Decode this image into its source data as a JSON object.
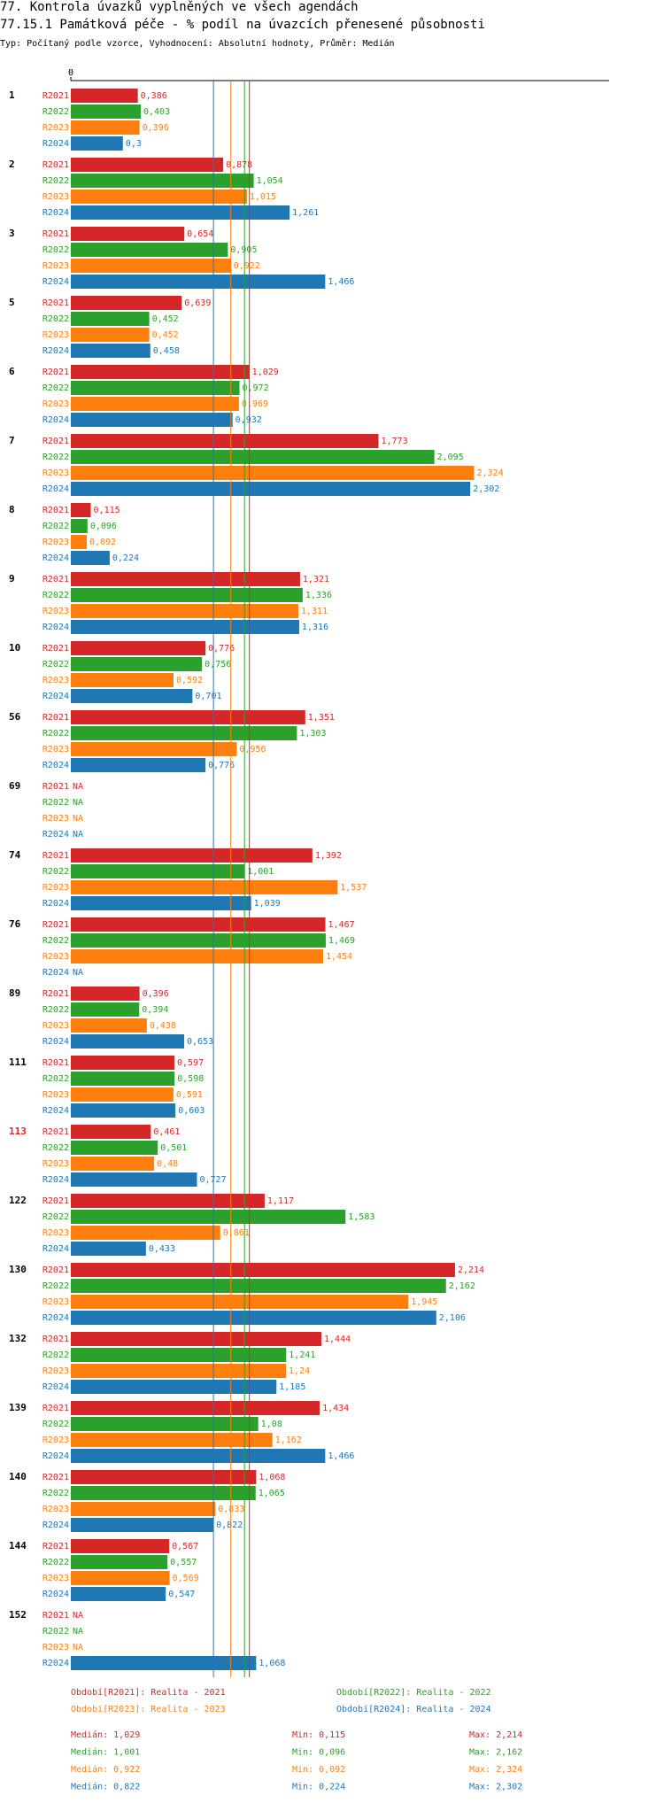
{
  "title_line1": "77. Kontrola úvazků vyplněných ve všech agendách",
  "title_line2": "77.15.1 Památková péče - % podíl na úvazcích přenesené působnosti",
  "subtitle": "Typ: Počítaný podle vzorce, Vyhodnocení: Absolutní hodnoty, Průměr: Medián",
  "chart_data": {
    "type": "bar",
    "orientation": "horizontal",
    "axis_zero_label": "0",
    "xlim": [
      0,
      2.6
    ],
    "na_label": "NA",
    "series": [
      {
        "key": "R2021",
        "label": "R2021",
        "color": "#d62728"
      },
      {
        "key": "R2022",
        "label": "R2022",
        "color": "#2ca02c"
      },
      {
        "key": "R2023",
        "label": "R2023",
        "color": "#ff7f0e"
      },
      {
        "key": "R2024",
        "label": "R2024",
        "color": "#1f77b4"
      }
    ],
    "groups": [
      {
        "label": "1",
        "highlight": false,
        "values": [
          0.386,
          0.403,
          0.396,
          0.3
        ],
        "texts": [
          "0,386",
          "0,403",
          "0,396",
          "0,3"
        ]
      },
      {
        "label": "2",
        "highlight": false,
        "values": [
          0.878,
          1.054,
          1.015,
          1.261
        ],
        "texts": [
          "0,878",
          "1,054",
          "1,015",
          "1,261"
        ]
      },
      {
        "label": "3",
        "highlight": false,
        "values": [
          0.654,
          0.905,
          0.922,
          1.466
        ],
        "texts": [
          "0,654",
          "0,905",
          "0,922",
          "1,466"
        ]
      },
      {
        "label": "5",
        "highlight": false,
        "values": [
          0.639,
          0.452,
          0.452,
          0.458
        ],
        "texts": [
          "0,639",
          "0,452",
          "0,452",
          "0,458"
        ]
      },
      {
        "label": "6",
        "highlight": false,
        "values": [
          1.029,
          0.972,
          0.969,
          0.932
        ],
        "texts": [
          "1,029",
          "0,972",
          "0,969",
          "0,932"
        ]
      },
      {
        "label": "7",
        "highlight": false,
        "values": [
          1.773,
          2.095,
          2.324,
          2.302
        ],
        "texts": [
          "1,773",
          "2,095",
          "2,324",
          "2,302"
        ]
      },
      {
        "label": "8",
        "highlight": false,
        "values": [
          0.115,
          0.096,
          0.092,
          0.224
        ],
        "texts": [
          "0,115",
          "0,096",
          "0,092",
          "0,224"
        ]
      },
      {
        "label": "9",
        "highlight": false,
        "values": [
          1.321,
          1.336,
          1.311,
          1.316
        ],
        "texts": [
          "1,321",
          "1,336",
          "1,311",
          "1,316"
        ]
      },
      {
        "label": "10",
        "highlight": false,
        "values": [
          0.776,
          0.756,
          0.592,
          0.701
        ],
        "texts": [
          "0,776",
          "0,756",
          "0,592",
          "0,701"
        ]
      },
      {
        "label": "56",
        "highlight": false,
        "values": [
          1.351,
          1.303,
          0.956,
          0.776
        ],
        "texts": [
          "1,351",
          "1,303",
          "0,956",
          "0,776"
        ]
      },
      {
        "label": "69",
        "highlight": false,
        "values": [
          null,
          null,
          null,
          null
        ],
        "texts": [
          "NA",
          "NA",
          "NA",
          "NA"
        ]
      },
      {
        "label": "74",
        "highlight": false,
        "values": [
          1.392,
          1.001,
          1.537,
          1.039
        ],
        "texts": [
          "1,392",
          "1,001",
          "1,537",
          "1,039"
        ]
      },
      {
        "label": "76",
        "highlight": false,
        "values": [
          1.467,
          1.469,
          1.454,
          null
        ],
        "texts": [
          "1,467",
          "1,469",
          "1,454",
          "NA"
        ]
      },
      {
        "label": "89",
        "highlight": false,
        "values": [
          0.396,
          0.394,
          0.438,
          0.653
        ],
        "texts": [
          "0,396",
          "0,394",
          "0,438",
          "0,653"
        ]
      },
      {
        "label": "111",
        "highlight": false,
        "values": [
          0.597,
          0.598,
          0.591,
          0.603
        ],
        "texts": [
          "0,597",
          "0,598",
          "0,591",
          "0,603"
        ]
      },
      {
        "label": "113",
        "highlight": true,
        "values": [
          0.461,
          0.501,
          0.48,
          0.727
        ],
        "texts": [
          "0,461",
          "0,501",
          "0,48",
          "0,727"
        ]
      },
      {
        "label": "122",
        "highlight": false,
        "values": [
          1.117,
          1.583,
          0.861,
          0.433
        ],
        "texts": [
          "1,117",
          "1,583",
          "0,861",
          "0,433"
        ]
      },
      {
        "label": "130",
        "highlight": false,
        "values": [
          2.214,
          2.162,
          1.945,
          2.106
        ],
        "texts": [
          "2,214",
          "2,162",
          "1,945",
          "2,106"
        ]
      },
      {
        "label": "132",
        "highlight": false,
        "values": [
          1.444,
          1.241,
          1.24,
          1.185
        ],
        "texts": [
          "1,444",
          "1,241",
          "1,24",
          "1,185"
        ]
      },
      {
        "label": "139",
        "highlight": false,
        "values": [
          1.434,
          1.08,
          1.162,
          1.466
        ],
        "texts": [
          "1,434",
          "1,08",
          "1,162",
          "1,466"
        ]
      },
      {
        "label": "140",
        "highlight": false,
        "values": [
          1.068,
          1.065,
          0.833,
          0.822
        ],
        "texts": [
          "1,068",
          "1,065",
          "0,833",
          "0,822"
        ]
      },
      {
        "label": "144",
        "highlight": false,
        "values": [
          0.567,
          0.557,
          0.569,
          0.547
        ],
        "texts": [
          "0,567",
          "0,557",
          "0,569",
          "0,547"
        ]
      },
      {
        "label": "152",
        "highlight": false,
        "values": [
          null,
          null,
          null,
          1.068
        ],
        "texts": [
          "NA",
          "NA",
          "NA",
          "1,068"
        ]
      }
    ],
    "median_lines": [
      {
        "series": "R2021",
        "value": 1.029
      },
      {
        "series": "R2022",
        "value": 1.001
      },
      {
        "series": "R2023",
        "value": 0.922
      },
      {
        "series": "R2024",
        "value": 0.822
      }
    ],
    "legend": [
      {
        "series": "R2021",
        "text": "Období[R2021]: Realita - 2021"
      },
      {
        "series": "R2022",
        "text": "Období[R2022]: Realita - 2022"
      },
      {
        "series": "R2023",
        "text": "Období[R2023]: Realita - 2023"
      },
      {
        "series": "R2024",
        "text": "Období[R2024]: Realita - 2024"
      }
    ],
    "stats": [
      {
        "series": "R2021",
        "median": "Medián: 1,029",
        "min": "Min: 0,115",
        "max": "Max: 2,214"
      },
      {
        "series": "R2022",
        "median": "Medián: 1,001",
        "min": "Min: 0,096",
        "max": "Max: 2,162"
      },
      {
        "series": "R2023",
        "median": "Medián: 0,922",
        "min": "Min: 0,092",
        "max": "Max: 2,324"
      },
      {
        "series": "R2024",
        "median": "Medián: 0,822",
        "min": "Min: 0,224",
        "max": "Max: 2,302"
      }
    ],
    "highlight_color": "#d62728"
  }
}
